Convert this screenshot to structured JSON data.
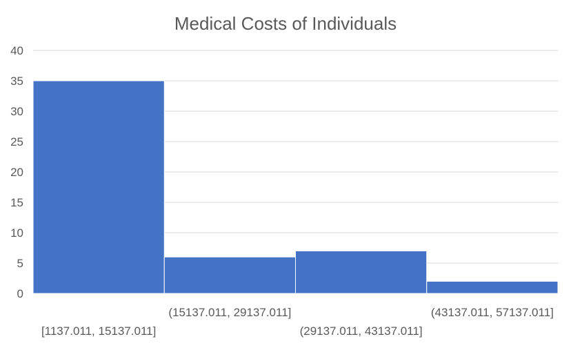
{
  "chart_data": {
    "type": "bar",
    "title": "Medical Costs of Individuals",
    "xlabel": "",
    "ylabel": "",
    "categories": [
      "[1137.011, 15137.011]",
      "(15137.011, 29137.011]",
      "(29137.011, 43137.011]",
      "(43137.011, 57137.011]"
    ],
    "values": [
      35,
      6,
      7,
      2
    ],
    "ylim": [
      0,
      40
    ],
    "yticks": [
      0,
      5,
      10,
      15,
      20,
      25,
      30,
      35,
      40
    ],
    "ytick_labels": [
      "0",
      "5",
      "10",
      "15",
      "20",
      "25",
      "30",
      "35",
      "40"
    ],
    "grid": true,
    "legend": "none",
    "bar_color": "#4472c4",
    "gridline_color": "#d9d9d9"
  }
}
